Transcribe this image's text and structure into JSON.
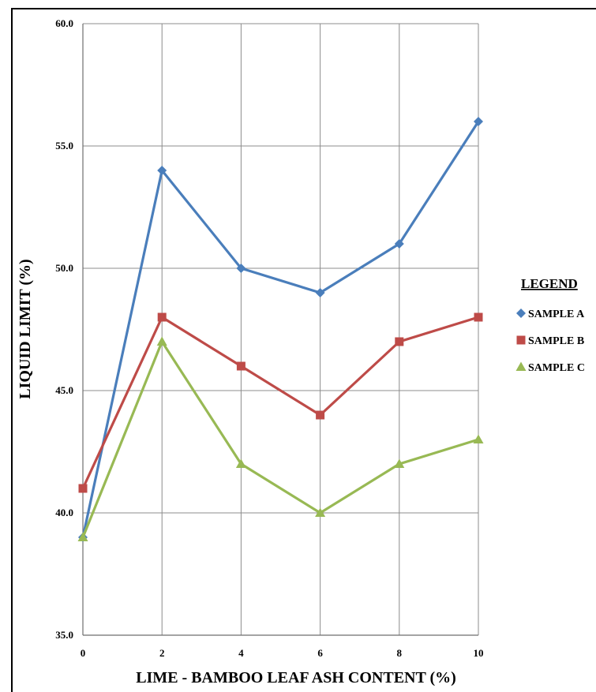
{
  "chart_data": {
    "type": "line",
    "title": "",
    "xlabel": "LIME - BAMBOO LEAF ASH CONTENT (%)",
    "ylabel": "LIQUID LIMIT (%)",
    "x": [
      0,
      2,
      4,
      6,
      8,
      10
    ],
    "x_ticks": [
      "0",
      "2",
      "4",
      "6",
      "8",
      "10"
    ],
    "y_ticks": [
      "35.0",
      "40.0",
      "45.0",
      "50.0",
      "55.0",
      "60.0"
    ],
    "xlim": [
      0,
      10
    ],
    "ylim": [
      35,
      60
    ],
    "grid": true,
    "legend_position": "right",
    "legend_title": "LEGEND",
    "series": [
      {
        "name": "SAMPLE A",
        "values": [
          39,
          54,
          50,
          49,
          51,
          56
        ],
        "color": "#4A7EBB",
        "marker": "diamond"
      },
      {
        "name": "SAMPLE B",
        "values": [
          41,
          48,
          46,
          44,
          47,
          48
        ],
        "color": "#BE4B48",
        "marker": "square"
      },
      {
        "name": "SAMPLE C",
        "values": [
          39,
          47,
          42,
          40,
          42,
          43
        ],
        "color": "#98B954",
        "marker": "triangle"
      }
    ]
  }
}
